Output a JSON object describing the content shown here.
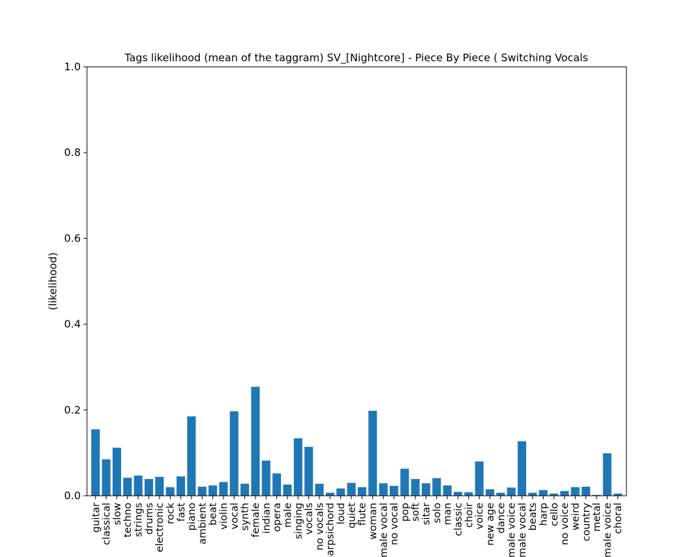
{
  "chart_data": {
    "type": "bar",
    "title": "Tags likelihood (mean of the taggram) SV_[Nightcore] - Piece By Piece ( Switching Vocals",
    "xlabel": "",
    "ylabel": "(likelihood)",
    "ylim": [
      0,
      1.0
    ],
    "yticks": [
      "0.0",
      "0.2",
      "0.4",
      "0.6",
      "0.8",
      "1.0"
    ],
    "grid": false,
    "bar_color": "#1f77b4",
    "categories": [
      "guitar",
      "classical",
      "slow",
      "techno",
      "strings",
      "drums",
      "electronic",
      "rock",
      "fast",
      "piano",
      "ambient",
      "beat",
      "violin",
      "vocal",
      "synth",
      "female",
      "indian",
      "opera",
      "male",
      "singing",
      "vocals",
      "no vocals",
      "harpsichord",
      "loud",
      "quiet",
      "flute",
      "woman",
      "male vocal",
      "no vocal",
      "pop",
      "soft",
      "sitar",
      "solo",
      "man",
      "classic",
      "choir",
      "voice",
      "new age",
      "dance",
      "male voice",
      "female vocal",
      "beats",
      "harp",
      "cello",
      "no voice",
      "weird",
      "country",
      "metal",
      "female voice",
      "choral"
    ],
    "values": [
      0.155,
      0.085,
      0.112,
      0.042,
      0.047,
      0.039,
      0.044,
      0.02,
      0.045,
      0.185,
      0.021,
      0.024,
      0.032,
      0.197,
      0.028,
      0.254,
      0.082,
      0.052,
      0.026,
      0.134,
      0.114,
      0.028,
      0.007,
      0.017,
      0.03,
      0.02,
      0.198,
      0.029,
      0.023,
      0.063,
      0.039,
      0.029,
      0.041,
      0.024,
      0.009,
      0.008,
      0.08,
      0.015,
      0.007,
      0.019,
      0.127,
      0.007,
      0.013,
      0.005,
      0.011,
      0.02,
      0.021,
      0.002,
      0.099,
      0.005
    ]
  }
}
